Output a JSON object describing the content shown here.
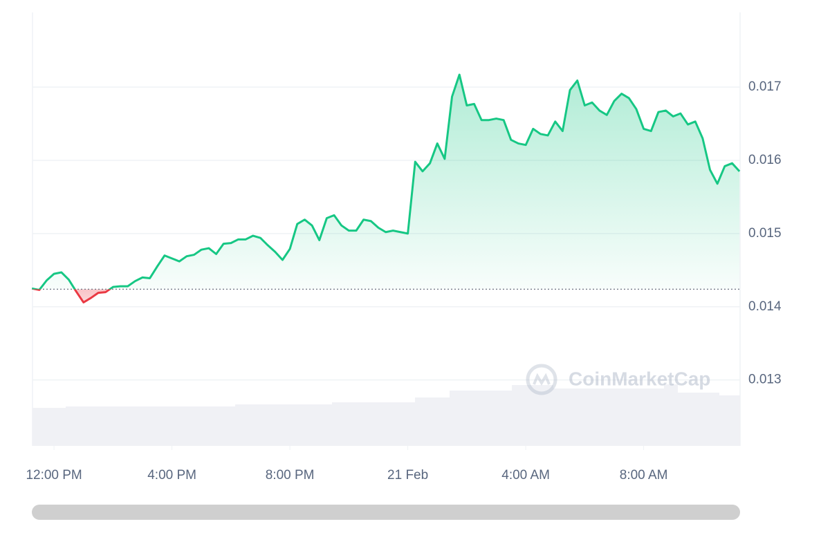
{
  "chart_data": {
    "type": "line",
    "watermark": "CoinMarketCap",
    "x": [
      -0.75,
      -0.5,
      -0.25,
      0,
      0.25,
      0.5,
      0.75,
      1,
      1.25,
      1.5,
      1.75,
      2,
      2.25,
      2.5,
      2.75,
      3,
      3.25,
      3.5,
      3.75,
      4,
      4.25,
      4.5,
      4.75,
      5,
      5.25,
      5.5,
      5.75,
      6,
      6.25,
      6.5,
      6.75,
      7,
      7.25,
      7.5,
      7.75,
      8,
      8.25,
      8.5,
      8.75,
      9,
      9.25,
      9.5,
      9.75,
      10,
      10.25,
      10.5,
      10.75,
      11,
      11.25,
      11.5,
      11.75,
      12,
      12.25,
      12.5,
      12.75,
      13,
      13.25,
      13.5,
      13.75,
      14,
      14.25,
      14.5,
      14.75,
      15,
      15.25,
      15.5,
      15.75,
      16,
      16.25,
      16.5,
      16.75,
      17,
      17.25,
      17.5,
      17.75,
      18,
      18.25,
      18.5,
      18.75,
      19,
      19.25,
      19.5,
      19.75,
      20,
      20.25,
      20.5,
      20.75,
      21,
      21.25,
      21.5,
      21.75,
      22,
      22.25,
      22.5,
      22.75,
      23,
      23.25
    ],
    "values": [
      0.01425,
      0.01423,
      0.01436,
      0.01445,
      0.01447,
      0.01437,
      0.01421,
      0.01406,
      0.01412,
      0.01419,
      0.0142,
      0.01427,
      0.01428,
      0.01428,
      0.01435,
      0.0144,
      0.01439,
      0.01455,
      0.0147,
      0.01466,
      0.01462,
      0.01469,
      0.01471,
      0.01478,
      0.0148,
      0.01472,
      0.01486,
      0.01487,
      0.01492,
      0.01492,
      0.01497,
      0.01494,
      0.01484,
      0.01475,
      0.01464,
      0.01479,
      0.01513,
      0.01519,
      0.01511,
      0.01491,
      0.01521,
      0.01525,
      0.01511,
      0.01504,
      0.01504,
      0.01519,
      0.01517,
      0.01508,
      0.01502,
      0.01504,
      0.01502,
      0.015,
      0.01598,
      0.01585,
      0.01596,
      0.01623,
      0.01602,
      0.01687,
      0.01717,
      0.01675,
      0.01677,
      0.01655,
      0.01655,
      0.01657,
      0.01655,
      0.01628,
      0.01623,
      0.01621,
      0.01643,
      0.01636,
      0.01634,
      0.01653,
      0.0164,
      0.01696,
      0.01709,
      0.01675,
      0.01679,
      0.01668,
      0.01662,
      0.01681,
      0.01691,
      0.01685,
      0.0167,
      0.01643,
      0.0164,
      0.01666,
      0.01668,
      0.0166,
      0.01664,
      0.01649,
      0.01653,
      0.0163,
      0.01587,
      0.01568,
      0.01592,
      0.01596,
      0.01585
    ],
    "baseline": 0.01424,
    "up_color": "#16c784",
    "down_color": "#ea3943",
    "xlim": [
      -0.73,
      23.27
    ],
    "xticks": [
      {
        "value": 0,
        "label": "12:00 PM"
      },
      {
        "value": 4,
        "label": "4:00 PM"
      },
      {
        "value": 8,
        "label": "8:00 PM"
      },
      {
        "value": 12,
        "label": "21 Feb"
      },
      {
        "value": 16,
        "label": "4:00 AM"
      },
      {
        "value": 20,
        "label": "8:00 AM"
      }
    ],
    "ylim": [
      0.0121,
      0.01802
    ],
    "yticks": [
      0.013,
      0.014,
      0.015,
      0.016,
      0.017
    ],
    "grid": true
  }
}
